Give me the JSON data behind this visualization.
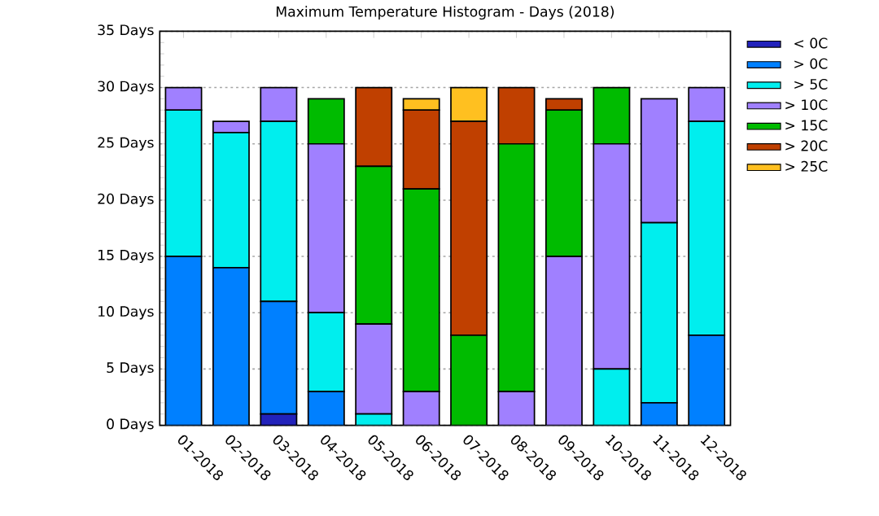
{
  "chart_data": {
    "type": "bar",
    "stacked": true,
    "title": "Maximum Temperature Histogram - Days (2018)",
    "categories": [
      "01-2018",
      "02-2018",
      "03-2018",
      "04-2018",
      "05-2018",
      "06-2018",
      "07-2018",
      "08-2018",
      "09-2018",
      "10-2018",
      "11-2018",
      "12-2018"
    ],
    "series": [
      {
        "name": "< 0C",
        "color": "#2222bb",
        "values": [
          0,
          0,
          1,
          0,
          0,
          0,
          0,
          0,
          0,
          0,
          0,
          0
        ]
      },
      {
        "name": "> 0C",
        "color": "#0080ff",
        "values": [
          15,
          14,
          10,
          3,
          0,
          0,
          0,
          0,
          0,
          0,
          2,
          8
        ]
      },
      {
        "name": "> 5C",
        "color": "#00eeee",
        "values": [
          13,
          12,
          16,
          7,
          1,
          0,
          0,
          0,
          0,
          5,
          16,
          19
        ]
      },
      {
        "name": "> 10C",
        "color": "#a080ff",
        "values": [
          2,
          1,
          3,
          15,
          8,
          3,
          0,
          3,
          15,
          20,
          11,
          3
        ]
      },
      {
        "name": "> 15C",
        "color": "#00bb00",
        "values": [
          0,
          0,
          0,
          4,
          14,
          18,
          8,
          22,
          13,
          5,
          0,
          0
        ]
      },
      {
        "name": "> 20C",
        "color": "#c04000",
        "values": [
          0,
          0,
          0,
          0,
          7,
          7,
          19,
          5,
          1,
          0,
          0,
          0
        ]
      },
      {
        "name": "> 25C",
        "color": "#ffc020",
        "values": [
          0,
          0,
          0,
          0,
          0,
          1,
          3,
          0,
          0,
          0,
          0,
          0
        ]
      }
    ],
    "ylim": [
      0,
      35
    ],
    "yticks": [
      {
        "value": 0,
        "label": "0 Days"
      },
      {
        "value": 5,
        "label": "5 Days"
      },
      {
        "value": 10,
        "label": "10 Days"
      },
      {
        "value": 15,
        "label": "15 Days"
      },
      {
        "value": 20,
        "label": "20 Days"
      },
      {
        "value": 25,
        "label": "25 Days"
      },
      {
        "value": 30,
        "label": "30 Days"
      },
      {
        "value": 35,
        "label": "35 Days"
      }
    ],
    "grid": "y",
    "legend": "right"
  }
}
